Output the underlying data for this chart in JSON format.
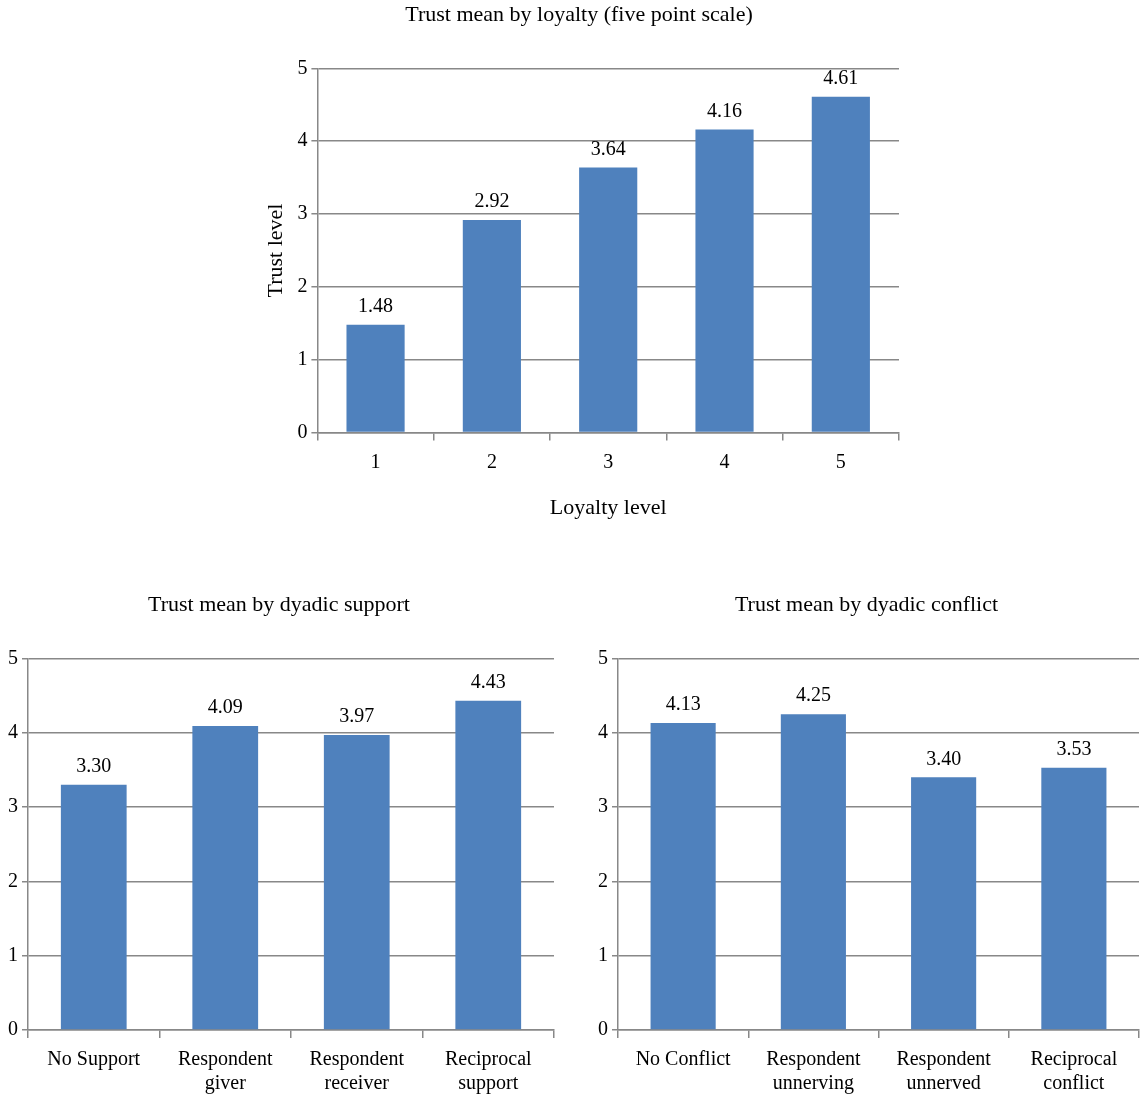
{
  "chart_data": [
    {
      "type": "bar",
      "title": "Trust mean by loyalty (five point scale)",
      "xlabel": "Loyalty level",
      "ylabel": "Trust level",
      "categories": [
        "1",
        "2",
        "3",
        "4",
        "5"
      ],
      "values": [
        1.48,
        2.92,
        3.64,
        4.16,
        4.61
      ],
      "value_labels": [
        "1.48",
        "2.92",
        "3.64",
        "4.16",
        "4.61"
      ],
      "color": "#4f81bd",
      "ylim": [
        0,
        5
      ],
      "yticks": [
        0,
        1,
        2,
        3,
        4,
        5
      ],
      "grid": "y",
      "legend": false
    },
    {
      "type": "bar",
      "title": "Trust mean by dyadic support",
      "categories": [
        "No Support",
        "Respondent giver",
        "Respondent receiver",
        "Reciprocal support"
      ],
      "values": [
        3.3,
        4.09,
        3.97,
        4.43
      ],
      "value_labels": [
        "3.30",
        "4.09",
        "3.97",
        "4.43"
      ],
      "color": "#4f81bd",
      "ylim": [
        0,
        5
      ],
      "yticks": [
        0,
        1,
        2,
        3,
        4,
        5
      ],
      "grid": "y",
      "legend": false
    },
    {
      "type": "bar",
      "title": "Trust mean by dyadic conflict",
      "categories": [
        "No Conflict",
        "Respondent unnerving",
        "Respondent unnerved",
        "Reciprocal conflict"
      ],
      "values": [
        4.13,
        4.25,
        3.4,
        3.53
      ],
      "value_labels": [
        "4.13",
        "4.25",
        "3.40",
        "3.53"
      ],
      "color": "#4f81bd",
      "ylim": [
        0,
        5
      ],
      "yticks": [
        0,
        1,
        2,
        3,
        4,
        5
      ],
      "grid": "y",
      "legend": false
    }
  ]
}
